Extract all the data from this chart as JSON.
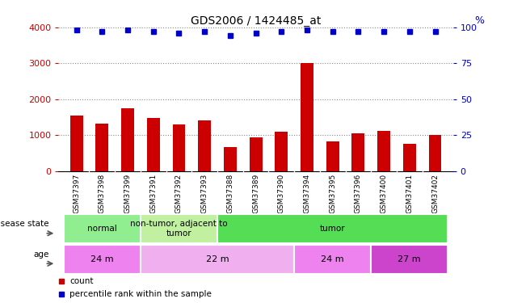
{
  "title": "GDS2006 / 1424485_at",
  "samples": [
    "GSM37397",
    "GSM37398",
    "GSM37399",
    "GSM37391",
    "GSM37392",
    "GSM37393",
    "GSM37388",
    "GSM37389",
    "GSM37390",
    "GSM37394",
    "GSM37395",
    "GSM37396",
    "GSM37400",
    "GSM37401",
    "GSM37402"
  ],
  "counts": [
    1550,
    1330,
    1760,
    1490,
    1290,
    1420,
    680,
    950,
    1100,
    3000,
    820,
    1050,
    1130,
    760,
    1010
  ],
  "percentiles": [
    98,
    97,
    98,
    97,
    96,
    97,
    94,
    96,
    97,
    98,
    97,
    97,
    97,
    97,
    97
  ],
  "bar_color": "#cc0000",
  "dot_color": "#0000cc",
  "ylim_left": [
    0,
    4000
  ],
  "ylim_right": [
    0,
    100
  ],
  "yticks_left": [
    0,
    1000,
    2000,
    3000,
    4000
  ],
  "yticks_right": [
    0,
    25,
    50,
    75,
    100
  ],
  "disease_state_groups": [
    {
      "label": "normal",
      "start": 0,
      "end": 3,
      "color": "#90ee90"
    },
    {
      "label": "non-tumor, adjacent to\ntumor",
      "start": 3,
      "end": 6,
      "color": "#c0f0a0"
    },
    {
      "label": "tumor",
      "start": 6,
      "end": 15,
      "color": "#55dd55"
    }
  ],
  "age_groups": [
    {
      "label": "24 m",
      "start": 0,
      "end": 3,
      "color": "#ee82ee"
    },
    {
      "label": "22 m",
      "start": 3,
      "end": 9,
      "color": "#f0b0f0"
    },
    {
      "label": "24 m",
      "start": 9,
      "end": 12,
      "color": "#ee82ee"
    },
    {
      "label": "27 m",
      "start": 12,
      "end": 15,
      "color": "#cc44cc"
    }
  ],
  "legend_items": [
    {
      "label": "count",
      "color": "#cc0000"
    },
    {
      "label": "percentile rank within the sample",
      "color": "#0000cc"
    }
  ],
  "background_color": "#ffffff",
  "grid_color": "#888888",
  "tick_color_left": "#cc0000",
  "tick_color_right": "#0000cc",
  "xtick_bg_color": "#d8d8d8",
  "bar_width": 0.5
}
